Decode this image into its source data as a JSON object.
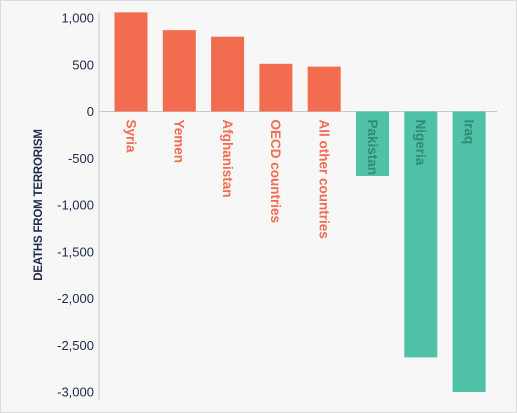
{
  "chart_data": {
    "type": "bar",
    "title": "",
    "xlabel": "",
    "ylabel": "DEATHS FROM TERRORISM",
    "ylim": [
      -3000,
      1000
    ],
    "yticks": [
      1000,
      500,
      0,
      -500,
      -1000,
      -1500,
      -2000,
      -2500,
      -3000
    ],
    "ytick_labels": [
      "1,000",
      "500",
      "0",
      "-500",
      "-1,000",
      "-1,500",
      "-2,000",
      "-2,500",
      "-3,000"
    ],
    "grid": false,
    "legend": "none",
    "categories": [
      "Syria",
      "Yemen",
      "Afghanistan",
      "OECD countries",
      "All other countries",
      "Pakistan",
      "Nigeria",
      "Iraq"
    ],
    "values": [
      1060,
      870,
      800,
      510,
      480,
      -690,
      -2630,
      -3000
    ],
    "colors": {
      "increase": "#f26c4f",
      "decrease": "#4fc1a6",
      "axis": "#c8c8c8",
      "text": "#1f2a4a"
    }
  }
}
